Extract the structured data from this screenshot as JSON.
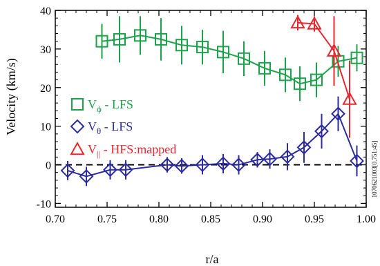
{
  "chart_data": {
    "type": "scatter",
    "xlabel": "r/a",
    "ylabel": "Velocity (km/s)",
    "xlim": [
      0.7,
      1.0
    ],
    "ylim": [
      -11,
      40
    ],
    "x_ticks": [
      "0.70",
      "0.75",
      "0.80",
      "0.85",
      "0.90",
      "0.95",
      "1.00"
    ],
    "y_ticks": [
      "-10",
      "0",
      "10",
      "20",
      "30",
      "40"
    ],
    "x_tick_values": [
      0.7,
      0.75,
      0.8,
      0.85,
      0.9,
      0.95,
      1.0
    ],
    "y_tick_values": [
      -10,
      0,
      10,
      20,
      30,
      40
    ],
    "zero_line": true,
    "legend": {
      "placement": "left-middle",
      "entries": [
        {
          "prefix": "V",
          "sub": "ϕ",
          "suffix": " - LFS",
          "color": "#1ba34a",
          "marker": "square"
        },
        {
          "prefix": "V",
          "sub": "θ",
          "suffix": " - LFS",
          "color": "#2b2b9e",
          "marker": "diamond"
        },
        {
          "prefix": "V",
          "sub": "||",
          "suffix": " - HFS:mapped",
          "color": "#e8262d",
          "marker": "triangle"
        }
      ]
    },
    "side_note": "1070621003[0.751:45]",
    "series": [
      {
        "color": "#1ba34a",
        "marker": "square",
        "x": [
          0.745,
          0.762,
          0.782,
          0.802,
          0.822,
          0.842,
          0.862,
          0.882,
          0.902,
          0.922,
          0.936,
          0.952,
          0.973,
          0.991
        ],
        "y": [
          32,
          32.5,
          33.5,
          32.5,
          31,
          30.5,
          29.2,
          27.5,
          25,
          23.3,
          21,
          22,
          26.8,
          27.7
        ],
        "err": [
          4.5,
          6,
          5,
          5.5,
          5,
          4.5,
          5.5,
          4.5,
          4.5,
          4.5,
          4.5,
          4.5,
          4,
          3.5
        ]
      },
      {
        "color": "#2b2b9e",
        "marker": "diamond",
        "x": [
          0.712,
          0.73,
          0.753,
          0.768,
          0.808,
          0.822,
          0.842,
          0.862,
          0.877,
          0.895,
          0.907,
          0.924,
          0.94,
          0.957,
          0.973,
          0.991
        ],
        "y": [
          -1.5,
          -3,
          -1.3,
          -1.3,
          0,
          -0.3,
          0,
          0.3,
          0,
          1.3,
          1.5,
          2.1,
          4.5,
          8.7,
          13.2,
          1
        ],
        "err": [
          2.5,
          2.5,
          2.5,
          2.5,
          2,
          2,
          2.5,
          2.5,
          2.5,
          2,
          2.5,
          3.5,
          4,
          4.5,
          4.5,
          4
        ]
      },
      {
        "color": "#e8262d",
        "marker": "triangle",
        "x": [
          0.934,
          0.95,
          0.969,
          0.984
        ],
        "y": [
          36.8,
          36.5,
          29.5,
          17
        ],
        "err": [
          2,
          2,
          9,
          10
        ]
      }
    ]
  }
}
